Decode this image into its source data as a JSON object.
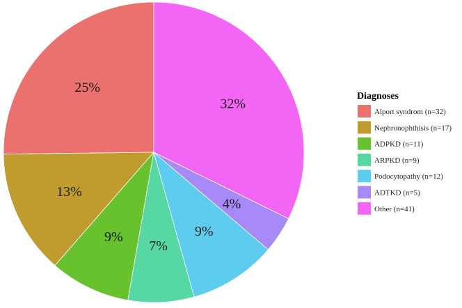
{
  "chart_data": {
    "type": "pie",
    "legend": {
      "title": "Diagnoses",
      "placement": "right"
    },
    "slices": [
      {
        "label": "Alport syndrom (n=32)",
        "value": 32,
        "percent_label": "25%",
        "color": "#EA716E"
      },
      {
        "label": "Nephronophthisis (n=17)",
        "value": 17,
        "percent_label": "13%",
        "color": "#C09C2E"
      },
      {
        "label": "ADPKD (n=11)",
        "value": 11,
        "percent_label": "9%",
        "color": "#67C22D"
      },
      {
        "label": "ARPKD (n=9)",
        "value": 9,
        "percent_label": "7%",
        "color": "#57D8A2"
      },
      {
        "label": "Podocytopathy (n=12)",
        "value": 12,
        "percent_label": "9%",
        "color": "#5ECCEE"
      },
      {
        "label": "ADTKD (n=5)",
        "value": 5,
        "percent_label": "4%",
        "color": "#A789F7"
      },
      {
        "label": "Other (n=41)",
        "value": 41,
        "percent_label": "32%",
        "color": "#F366F5"
      }
    ]
  }
}
